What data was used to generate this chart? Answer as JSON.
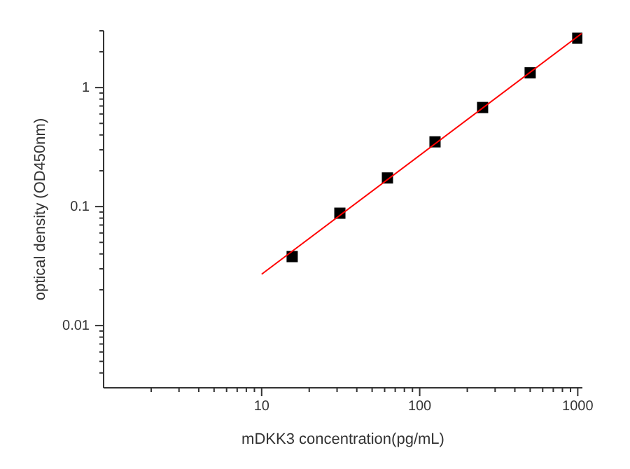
{
  "chart_data": {
    "type": "scatter",
    "xlabel": "mDKK3 concentration(pg/mL)",
    "ylabel": "optical density (OD450nm)",
    "log": "xy",
    "grid": false,
    "marker": "square",
    "x": [
      15.6,
      31.25,
      62.5,
      125,
      250,
      500,
      1000
    ],
    "series": [
      {
        "color": "#000000",
        "values": [
          0.038,
          0.088,
          0.174,
          0.35,
          0.68,
          1.33,
          2.6
        ]
      },
      {
        "type": "line",
        "color": "#ff0000",
        "x": [
          10,
          1060
        ],
        "values": [
          0.027,
          2.85
        ],
        "marker": "none"
      }
    ],
    "xlim": [
      1,
      1070
    ],
    "ylim": [
      0.003,
      3
    ],
    "xticks": [
      {
        "value": 2,
        "label": null
      },
      {
        "value": 3,
        "label": null
      },
      {
        "value": 4,
        "label": null
      },
      {
        "value": 5,
        "label": null
      },
      {
        "value": 6,
        "label": null
      },
      {
        "value": 7,
        "label": null
      },
      {
        "value": 8,
        "label": null
      },
      {
        "value": 9,
        "label": null
      },
      10,
      {
        "value": 20,
        "label": null
      },
      {
        "value": 30,
        "label": null
      },
      {
        "value": 40,
        "label": null
      },
      {
        "value": 50,
        "label": null
      },
      {
        "value": 60,
        "label": null
      },
      {
        "value": 70,
        "label": null
      },
      {
        "value": 80,
        "label": null
      },
      {
        "value": 90,
        "label": null
      },
      100,
      {
        "value": 200,
        "label": null
      },
      {
        "value": 300,
        "label": null
      },
      {
        "value": 400,
        "label": null
      },
      {
        "value": 500,
        "label": null
      },
      {
        "value": 600,
        "label": null
      },
      {
        "value": 700,
        "label": null
      },
      {
        "value": 800,
        "label": null
      },
      {
        "value": 900,
        "label": null
      },
      1000
    ],
    "yticks": [
      {
        "value": 0.004,
        "label": null
      },
      {
        "value": 0.005,
        "label": null
      },
      {
        "value": 0.006,
        "label": null
      },
      {
        "value": 0.007,
        "label": null
      },
      {
        "value": 0.008,
        "label": null
      },
      {
        "value": 0.009,
        "label": null
      },
      0.01,
      {
        "value": 0.02,
        "label": null
      },
      {
        "value": 0.03,
        "label": null
      },
      {
        "value": 0.04,
        "label": null
      },
      {
        "value": 0.05,
        "label": null
      },
      {
        "value": 0.06,
        "label": null
      },
      {
        "value": 0.07,
        "label": null
      },
      {
        "value": 0.08,
        "label": null
      },
      {
        "value": 0.09,
        "label": null
      },
      0.1,
      {
        "value": 0.2,
        "label": null
      },
      {
        "value": 0.3,
        "label": null
      },
      {
        "value": 0.4,
        "label": null
      },
      {
        "value": 0.5,
        "label": null
      },
      {
        "value": 0.6,
        "label": null
      },
      {
        "value": 0.7,
        "label": null
      },
      {
        "value": 0.8,
        "label": null
      },
      {
        "value": 0.9,
        "label": null
      },
      1,
      {
        "value": 2,
        "label": null
      },
      {
        "value": 3,
        "label": null
      }
    ]
  }
}
